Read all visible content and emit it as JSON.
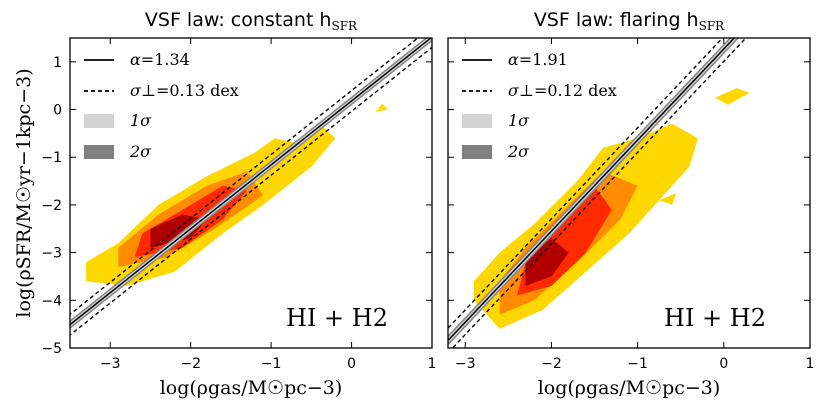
{
  "colors": {
    "contour_levels": [
      "#ffd700",
      "#ff8c00",
      "#ff2a00",
      "#b00000"
    ],
    "band_1sigma": "#d3d3d3",
    "band_2sigma": "#808080",
    "fit_line": "#000000"
  },
  "legend_labels": {
    "fit_line": "α=",
    "scatter_line": "σ⊥=",
    "band_1sigma": "1σ",
    "band_2sigma": "2σ"
  },
  "chart_data": [
    {
      "type": "contour-scatter",
      "title": "VSF law: constant h",
      "title_sub": "SFR",
      "xlabel": "log(ρgas/M☉pc−3)",
      "ylabel": "log(ρSFR/M☉yr−1kpc−3)",
      "xlim": [
        -3.5,
        1
      ],
      "ylim": [
        -5,
        1.5
      ],
      "xticks": [
        -3,
        -2,
        -1,
        0,
        1
      ],
      "yticks": [
        -5,
        -4,
        -3,
        -2,
        -1,
        0,
        1
      ],
      "tick_labels_x": [
        "−3",
        "−2",
        "−1",
        "0",
        "1"
      ],
      "tick_labels_y": [
        "−5",
        "−4",
        "−3",
        "−2",
        "−1",
        "0",
        "1"
      ],
      "annotation": "HI + H2",
      "fit": {
        "alpha": 1.34,
        "alpha_text": "1.34",
        "sigma_perp_text": "0.13 dex",
        "x0": -2.0,
        "y0": -2.5,
        "sigma_perp_dex": 0.13
      },
      "density_levels": [
        {
          "name": "outer",
          "points": [
            [
              -3.3,
              -3.6
            ],
            [
              -2.8,
              -3.7
            ],
            [
              -2.2,
              -3.4
            ],
            [
              -1.6,
              -2.6
            ],
            [
              -1.1,
              -2.0
            ],
            [
              -0.5,
              -1.2
            ],
            [
              -0.2,
              -0.6
            ],
            [
              -0.4,
              -0.3
            ],
            [
              -0.7,
              -0.7
            ],
            [
              -0.95,
              -0.6
            ],
            [
              -1.2,
              -0.9
            ],
            [
              -1.8,
              -1.4
            ],
            [
              -2.4,
              -2.0
            ],
            [
              -2.9,
              -2.8
            ],
            [
              -3.3,
              -3.2
            ]
          ]
        },
        {
          "name": "mid",
          "points": [
            [
              -2.9,
              -3.3
            ],
            [
              -2.3,
              -3.1
            ],
            [
              -1.7,
              -2.5
            ],
            [
              -1.1,
              -1.8
            ],
            [
              -1.3,
              -1.3
            ],
            [
              -1.8,
              -1.6
            ],
            [
              -2.4,
              -2.2
            ],
            [
              -2.9,
              -2.9
            ]
          ]
        },
        {
          "name": "high",
          "points": [
            [
              -2.7,
              -3.1
            ],
            [
              -2.1,
              -2.9
            ],
            [
              -1.6,
              -2.3
            ],
            [
              -1.3,
              -1.7
            ],
            [
              -1.6,
              -1.6
            ],
            [
              -2.1,
              -2.1
            ],
            [
              -2.6,
              -2.6
            ]
          ]
        },
        {
          "name": "peak",
          "points": [
            [
              -2.5,
              -2.9
            ],
            [
              -2.0,
              -2.7
            ],
            [
              -1.8,
              -2.3
            ],
            [
              -2.1,
              -2.2
            ],
            [
              -2.5,
              -2.5
            ]
          ]
        }
      ],
      "extra_patches": [
        {
          "level": "outer",
          "points": [
            [
              0.3,
              -0.05
            ],
            [
              0.45,
              0.0
            ],
            [
              0.38,
              0.12
            ]
          ]
        }
      ]
    },
    {
      "type": "contour-scatter",
      "title": "VSF law: flaring h",
      "title_sub": "SFR",
      "xlabel": "log(ρgas/M☉pc−3)",
      "ylabel": "",
      "xlim": [
        -3.2,
        1
      ],
      "ylim": [
        -5,
        1.5
      ],
      "xticks": [
        -3,
        -2,
        -1,
        0,
        1
      ],
      "yticks": [
        -5,
        -4,
        -3,
        -2,
        -1,
        0,
        1
      ],
      "tick_labels_x": [
        "−3",
        "−2",
        "−1",
        "0",
        "1"
      ],
      "tick_labels_y": [],
      "annotation": "HI + H2",
      "fit": {
        "alpha": 1.91,
        "alpha_text": "1.91",
        "sigma_perp_text": "0.12 dex",
        "x0": -2.0,
        "y0": -2.55,
        "sigma_perp_dex": 0.12
      },
      "density_levels": [
        {
          "name": "outer",
          "points": [
            [
              -2.9,
              -4.0
            ],
            [
              -2.6,
              -4.6
            ],
            [
              -2.1,
              -4.2
            ],
            [
              -1.6,
              -3.4
            ],
            [
              -1.1,
              -2.6
            ],
            [
              -0.7,
              -1.8
            ],
            [
              -0.4,
              -1.2
            ],
            [
              -0.3,
              -0.6
            ],
            [
              -0.6,
              -0.3
            ],
            [
              -1.0,
              -0.6
            ],
            [
              -1.4,
              -0.8
            ],
            [
              -1.7,
              -1.5
            ],
            [
              -2.2,
              -2.4
            ],
            [
              -2.6,
              -3.0
            ],
            [
              -2.9,
              -3.6
            ]
          ]
        },
        {
          "name": "mid",
          "points": [
            [
              -2.6,
              -4.3
            ],
            [
              -2.2,
              -4.0
            ],
            [
              -1.7,
              -3.2
            ],
            [
              -1.2,
              -2.3
            ],
            [
              -1.0,
              -1.6
            ],
            [
              -1.4,
              -1.3
            ],
            [
              -1.8,
              -2.0
            ],
            [
              -2.3,
              -2.9
            ],
            [
              -2.6,
              -3.6
            ]
          ]
        },
        {
          "name": "high",
          "points": [
            [
              -2.4,
              -3.9
            ],
            [
              -2.0,
              -3.7
            ],
            [
              -1.6,
              -3.0
            ],
            [
              -1.3,
              -2.1
            ],
            [
              -1.5,
              -1.6
            ],
            [
              -1.9,
              -2.3
            ],
            [
              -2.3,
              -3.2
            ]
          ]
        },
        {
          "name": "peak",
          "points": [
            [
              -2.3,
              -3.7
            ],
            [
              -2.0,
              -3.5
            ],
            [
              -1.8,
              -3.0
            ],
            [
              -2.0,
              -2.7
            ],
            [
              -2.3,
              -3.1
            ]
          ]
        }
      ],
      "extra_patches": [
        {
          "level": "outer",
          "points": [
            [
              0.05,
              0.1
            ],
            [
              0.3,
              0.35
            ],
            [
              0.15,
              0.45
            ],
            [
              -0.1,
              0.25
            ]
          ]
        },
        {
          "level": "outer",
          "points": [
            [
              -0.75,
              -1.9
            ],
            [
              -0.6,
              -2.0
            ],
            [
              -0.55,
              -1.75
            ]
          ]
        }
      ]
    }
  ]
}
